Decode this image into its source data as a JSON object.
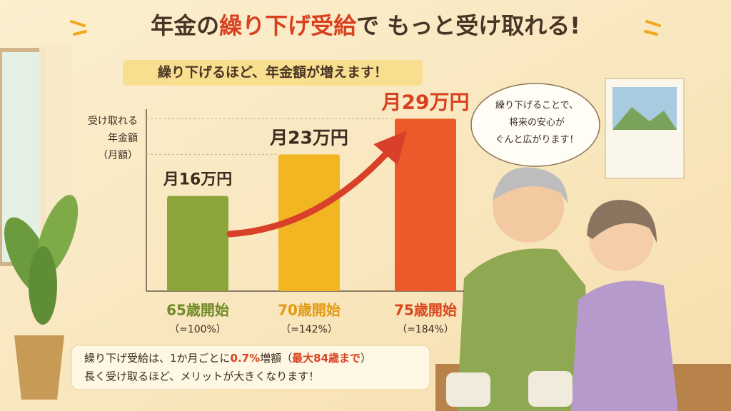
{
  "chart_data": {
    "type": "bar",
    "title_parts": [
      "年金の",
      "繰り下げ受給",
      "で もっと受け取れる!"
    ],
    "subtitle": "繰り下げるほど、年金額が増えます！",
    "y_label": [
      "受け取れる",
      "年金額",
      "（月額）"
    ],
    "categories": [
      "65歳開始",
      "70歳開始",
      "75歳開始"
    ],
    "category_notes": [
      "（=100%）",
      "（=142%）",
      "（=184%）"
    ],
    "values": [
      16,
      23,
      29
    ],
    "value_labels": [
      "月16万円",
      "月23万円",
      "月29万円"
    ],
    "colors": [
      "#8ba53b",
      "#f3b623",
      "#ec5a2b"
    ],
    "label_colors": [
      "#6f8a26",
      "#e39a12",
      "#d9461e"
    ],
    "ylim": [
      0,
      30
    ]
  },
  "speech_bubble": [
    "繰り下げることで、",
    "将来の安心が",
    "ぐんと広がります！"
  ],
  "note": {
    "line1": [
      "繰り下げ受給は、1か月ごとに",
      "0.7%",
      "増額（",
      "最大84歳まで",
      "）"
    ],
    "line2": "長く受け取るほど、メリットが大きくなります！"
  }
}
